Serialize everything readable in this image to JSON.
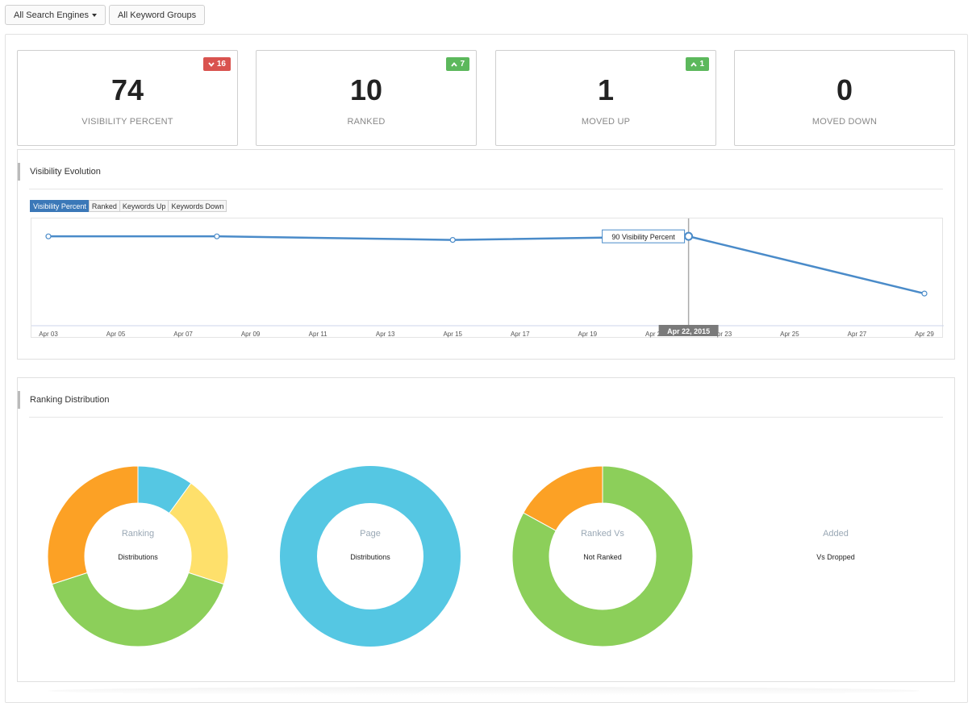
{
  "toolbar": {
    "search_engines_label": "All Search Engines",
    "keyword_groups_label": "All Keyword Groups"
  },
  "stats": [
    {
      "value": "74",
      "label": "VISIBILITY PERCENT",
      "badge": "16",
      "badge_direction": "down",
      "badge_color": "#d9534f"
    },
    {
      "value": "10",
      "label": "RANKED",
      "badge": "7",
      "badge_direction": "up",
      "badge_color": "#5cb85c"
    },
    {
      "value": "1",
      "label": "MOVED UP",
      "badge": "1",
      "badge_direction": "up",
      "badge_color": "#5cb85c"
    },
    {
      "value": "0",
      "label": "MOVED DOWN",
      "badge": "",
      "badge_direction": "",
      "badge_color": ""
    }
  ],
  "visibility": {
    "title": "Visibility Evolution",
    "tabs": [
      "Visibility Percent",
      "Ranked",
      "Keywords Up",
      "Keywords Down"
    ],
    "active_tab": "Visibility Percent",
    "tooltip_text": "90 Visibility Percent",
    "crosshair_label": "Apr 22, 2015"
  },
  "chart_data": {
    "type": "line",
    "x_ticks": [
      "Apr 03",
      "Apr 05",
      "Apr 07",
      "Apr 09",
      "Apr 11",
      "Apr 13",
      "Apr 15",
      "Apr 17",
      "Apr 19",
      "Apr 21",
      "Apr 23",
      "Apr 25",
      "Apr 27",
      "Apr 29"
    ],
    "x": [
      "2015-04-03",
      "2015-04-08",
      "2015-04-15",
      "2015-04-22",
      "2015-04-29"
    ],
    "series": [
      {
        "values": [
          90,
          90,
          88,
          90,
          58
        ],
        "color": "#4a8bc9"
      }
    ],
    "ylim": [
      40,
      100
    ],
    "highlight_x": "2015-04-22",
    "grid": false
  },
  "distribution": {
    "title": "Ranking Distribution",
    "donuts": [
      {
        "line1": "Ranking",
        "line2": "Distributions",
        "slices": [
          {
            "value": 10,
            "color": "#55c7e3"
          },
          {
            "value": 20,
            "color": "#fee06b"
          },
          {
            "value": 40,
            "color": "#8ccf5a"
          },
          {
            "value": 30,
            "color": "#fca125"
          }
        ]
      },
      {
        "line1": "Page",
        "line2": "Distributions",
        "slices": [
          {
            "value": 100,
            "color": "#55c7e3"
          }
        ]
      },
      {
        "line1": "Ranked Vs",
        "line2": "Not Ranked",
        "slices": [
          {
            "value": 83,
            "color": "#8ccf5a"
          },
          {
            "value": 17,
            "color": "#fca125"
          }
        ]
      },
      {
        "line1": "Added",
        "line2": "Vs Dropped",
        "slices": []
      }
    ]
  }
}
